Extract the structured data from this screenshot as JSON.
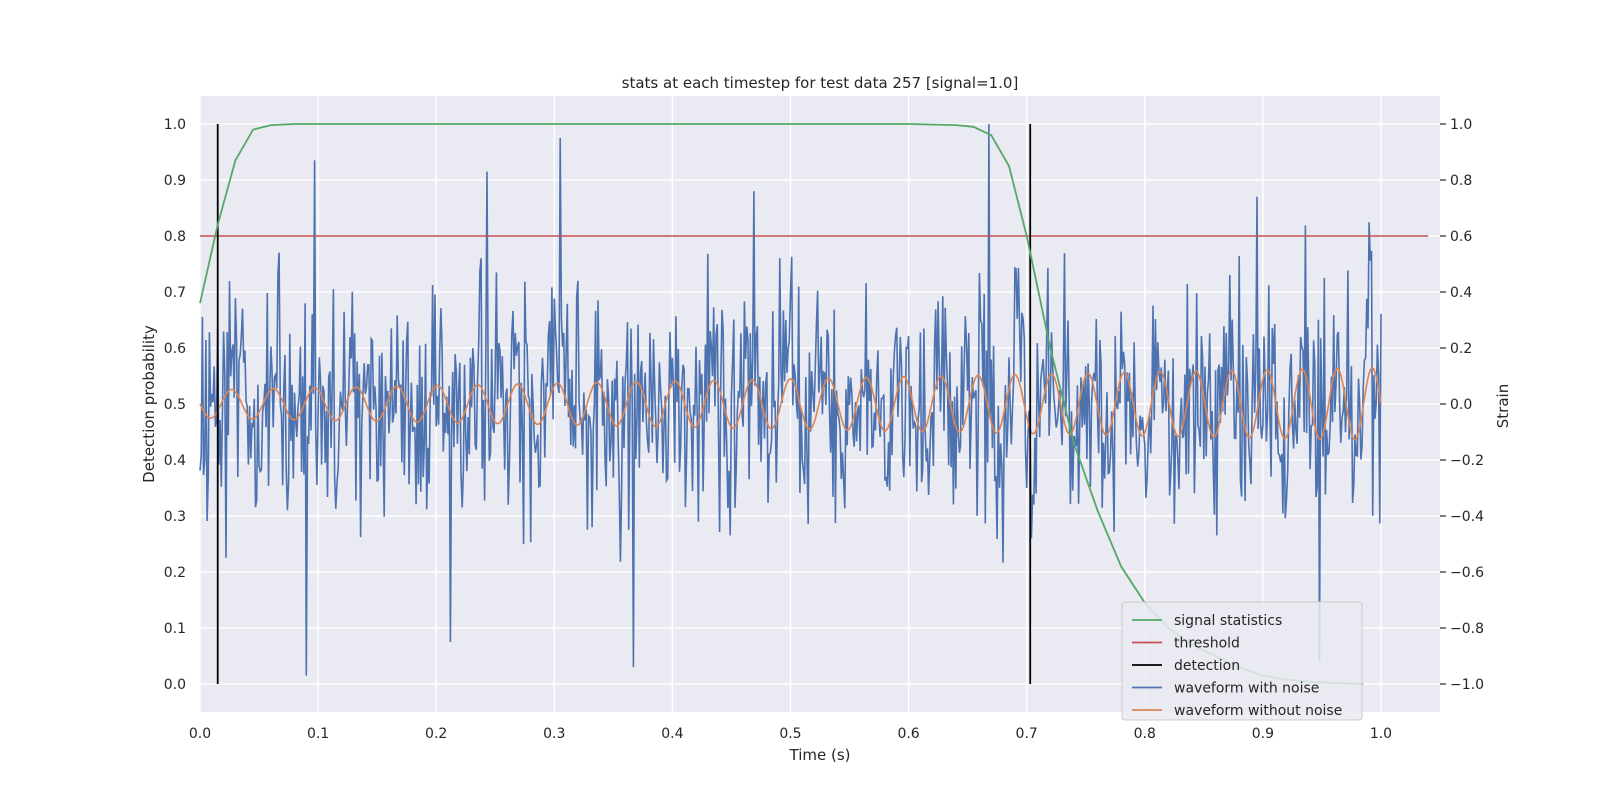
{
  "chart_data": {
    "type": "line",
    "title": "stats at each timestep for test data 257 [signal=1.0]",
    "xlabel": "Time (s)",
    "ylabel_left": "Detection probability",
    "ylabel_right": "Strain",
    "xlim": [
      0.0,
      1.05
    ],
    "ylim_left": [
      -0.05,
      1.05
    ],
    "ylim_right": [
      -1.1,
      1.1
    ],
    "xticks": [
      "0.0",
      "0.1",
      "0.2",
      "0.3",
      "0.4",
      "0.5",
      "0.6",
      "0.7",
      "0.8",
      "0.9",
      "1.0"
    ],
    "yticks_left": [
      "0.0",
      "0.1",
      "0.2",
      "0.3",
      "0.4",
      "0.5",
      "0.6",
      "0.7",
      "0.8",
      "0.9",
      "1.0"
    ],
    "yticks_right": [
      "−1.0",
      "−0.8",
      "−0.6",
      "−0.4",
      "−0.2",
      "0.0",
      "0.2",
      "0.4",
      "0.6",
      "0.8",
      "1.0"
    ],
    "grid": true,
    "legend_position": "bottom-right",
    "colors": {
      "signal_statistics": "#55a868",
      "threshold": "#c44e52",
      "detection": "#000000",
      "waveform_with_noise": "#4c72b0",
      "waveform_without_noise": "#dd8452",
      "plot_background": "#eaeaf2",
      "grid": "#ffffff"
    },
    "series": [
      {
        "name": "signal statistics",
        "axis": "left",
        "x": [
          0.0,
          0.015,
          0.03,
          0.045,
          0.06,
          0.08,
          0.1,
          0.2,
          0.3,
          0.4,
          0.5,
          0.6,
          0.64,
          0.655,
          0.67,
          0.685,
          0.7,
          0.72,
          0.74,
          0.76,
          0.78,
          0.8,
          0.82,
          0.84,
          0.86,
          0.88,
          0.9,
          0.92,
          0.94,
          0.96,
          0.985
        ],
        "y": [
          0.68,
          0.82,
          0.935,
          0.99,
          0.998,
          1.0,
          1.0,
          1.0,
          1.0,
          1.0,
          1.0,
          1.0,
          0.998,
          0.995,
          0.98,
          0.925,
          0.8,
          0.6,
          0.43,
          0.31,
          0.21,
          0.145,
          0.1,
          0.07,
          0.05,
          0.03,
          0.015,
          0.008,
          0.004,
          0.002,
          0.0
        ]
      },
      {
        "name": "threshold",
        "axis": "left",
        "x": [
          0.0,
          1.04
        ],
        "y": [
          0.8,
          0.8
        ]
      },
      {
        "name": "detection",
        "axis": "left",
        "x": [
          0.015,
          0.703
        ],
        "y_range": [
          0.0,
          1.0
        ]
      },
      {
        "name": "waveform with noise",
        "axis": "right",
        "x_range": [
          0.0,
          1.0
        ],
        "peaks": [
          {
            "x": 0.097,
            "y": 0.87
          },
          {
            "x": 0.243,
            "y": 0.83
          },
          {
            "x": 0.305,
            "y": 0.95
          },
          {
            "x": 0.469,
            "y": 0.76
          },
          {
            "x": 0.668,
            "y": 1.0
          },
          {
            "x": 0.895,
            "y": 0.74
          }
        ],
        "troughs": [
          {
            "x": 0.09,
            "y": -0.97
          },
          {
            "x": 0.212,
            "y": -0.85
          },
          {
            "x": 0.367,
            "y": -0.94
          },
          {
            "x": 0.948,
            "y": -0.92
          }
        ],
        "amplitude_typical": 0.35
      },
      {
        "name": "waveform without noise",
        "axis": "right",
        "x_range": [
          0.0,
          1.0
        ],
        "amplitude_start": 0.05,
        "amplitude_end": 0.13,
        "freq_start_hz": 28,
        "freq_end_hz": 34
      }
    ]
  }
}
